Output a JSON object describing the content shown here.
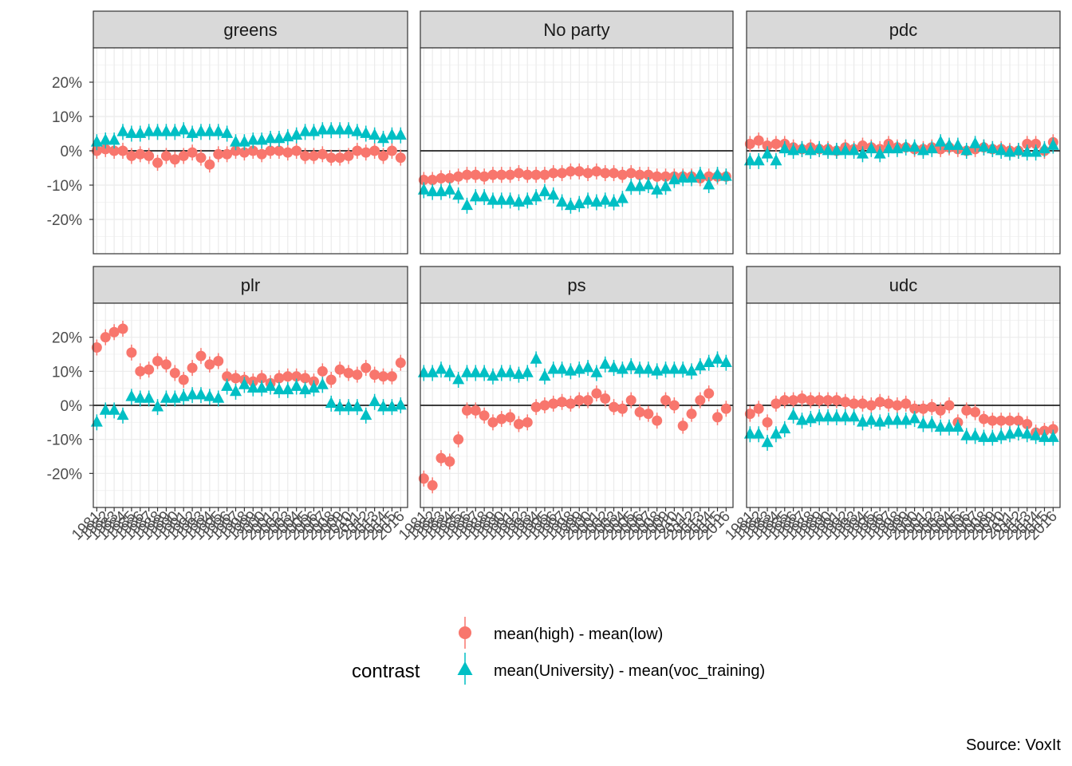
{
  "chart_data": {
    "type": "scatter",
    "facets": [
      "greens",
      "No party",
      "pdc",
      "plr",
      "ps",
      "udc"
    ],
    "x_categories": [
      "1981",
      "1982",
      "1983",
      "1984",
      "1985",
      "1986",
      "1987",
      "1988",
      "1989",
      "1990",
      "1991",
      "1992",
      "1993",
      "1994",
      "1995",
      "1996",
      "1997",
      "1998",
      "1999",
      "2000",
      "2001",
      "2002",
      "2003",
      "2004",
      "2005",
      "2006",
      "2007",
      "2008",
      "2009",
      "2010",
      "2011",
      "2012",
      "2013",
      "2014",
      "2015",
      "2016"
    ],
    "y_ticks": [
      -20,
      -10,
      0,
      10,
      20
    ],
    "y_tick_labels": [
      "-20%",
      "-10%",
      "0%",
      "10%",
      "20%"
    ],
    "ylim": [
      -30,
      30
    ],
    "ylabel": "",
    "xlabel": "",
    "legend": {
      "title": "contrast",
      "position": "bottom",
      "entries": [
        {
          "label": "mean(high) - mean(low)",
          "color": "#F8766D",
          "shape": "circle"
        },
        {
          "label": "mean(University) - mean(voc_training)",
          "color": "#00BFC4",
          "shape": "triangle"
        }
      ]
    },
    "caption": "Source: VoxIt",
    "grid": true,
    "series": [
      {
        "name": "mean(high) - mean(low)",
        "color": "#F8766D",
        "shape": "circle",
        "values": {
          "greens": [
            0.0,
            0.5,
            0.0,
            0.0,
            -1.5,
            -1.0,
            -1.5,
            -3.5,
            -1.5,
            -2.5,
            -1.5,
            -0.5,
            -2.0,
            -4.0,
            -1.0,
            -1.0,
            0.0,
            -0.5,
            0.0,
            -1.0,
            0.0,
            0.0,
            -0.5,
            0.0,
            -1.5,
            -1.5,
            -1.0,
            -2.0,
            -2.0,
            -1.5,
            0.0,
            -0.5,
            0.0,
            -1.5,
            0.0,
            -2.0
          ],
          "No party": [
            -8.5,
            -8.5,
            -8.0,
            -8.0,
            -7.5,
            -7.0,
            -7.0,
            -7.5,
            -7.0,
            -7.0,
            -7.0,
            -6.5,
            -7.0,
            -7.0,
            -7.0,
            -6.5,
            -6.5,
            -6.0,
            -6.0,
            -6.5,
            -6.0,
            -6.5,
            -6.5,
            -7.0,
            -6.5,
            -7.0,
            -7.0,
            -7.5,
            -7.5,
            -7.5,
            -7.5,
            -7.5,
            -8.0,
            -7.5,
            -7.5,
            -7.5
          ],
          "pdc": [
            2.0,
            3.0,
            1.5,
            2.0,
            2.0,
            1.0,
            0.5,
            1.0,
            0.5,
            0.5,
            0.0,
            1.0,
            0.5,
            1.5,
            1.0,
            0.5,
            2.0,
            1.0,
            1.0,
            0.5,
            0.5,
            1.0,
            0.5,
            1.0,
            0.5,
            0.0,
            0.5,
            1.0,
            0.5,
            0.5,
            0.0,
            0.0,
            2.0,
            2.0,
            0.0,
            2.5
          ],
          "plr": [
            17.0,
            20.0,
            21.5,
            22.5,
            15.5,
            10.0,
            10.5,
            13.0,
            12.0,
            9.5,
            7.5,
            11.0,
            14.5,
            12.0,
            13.0,
            8.5,
            8.0,
            7.5,
            7.0,
            8.0,
            6.5,
            8.0,
            8.5,
            8.5,
            8.0,
            7.0,
            10.0,
            7.5,
            10.5,
            9.5,
            9.0,
            11.0,
            9.0,
            8.5,
            8.5,
            12.5
          ],
          "ps": [
            -21.5,
            -23.5,
            -15.5,
            -16.5,
            -10.0,
            -1.5,
            -1.5,
            -3.0,
            -5.0,
            -4.0,
            -3.5,
            -5.5,
            -5.0,
            -0.5,
            0.0,
            0.5,
            1.0,
            0.5,
            1.5,
            1.5,
            3.5,
            2.0,
            -0.5,
            -1.0,
            1.5,
            -2.0,
            -2.5,
            -4.5,
            1.5,
            0.0,
            -6.0,
            -2.5,
            1.5,
            3.5,
            -3.5,
            -1.0
          ],
          "udc": [
            -2.5,
            -1.0,
            -5.0,
            0.5,
            1.5,
            1.5,
            2.0,
            1.5,
            1.5,
            1.5,
            1.5,
            1.0,
            0.5,
            0.5,
            0.0,
            1.0,
            0.5,
            0.0,
            0.5,
            -1.0,
            -1.0,
            -0.5,
            -1.5,
            0.0,
            -5.0,
            -1.5,
            -2.0,
            -4.0,
            -4.5,
            -4.5,
            -4.5,
            -4.5,
            -5.5,
            -8.0,
            -7.5,
            -7.0
          ]
        }
      },
      {
        "name": "mean(University) - mean(voc_training)",
        "color": "#00BFC4",
        "shape": "triangle",
        "values": {
          "greens": [
            2.5,
            3.0,
            3.0,
            5.5,
            5.0,
            5.0,
            5.5,
            5.5,
            5.5,
            5.5,
            6.0,
            5.0,
            5.5,
            5.5,
            5.5,
            5.0,
            2.5,
            2.5,
            3.0,
            3.0,
            3.5,
            3.5,
            4.0,
            4.5,
            5.5,
            5.5,
            6.0,
            6.0,
            6.0,
            6.0,
            5.5,
            5.0,
            4.5,
            3.5,
            4.5,
            4.5
          ],
          "No party": [
            -11.5,
            -12.0,
            -12.0,
            -11.5,
            -13.0,
            -16.0,
            -13.5,
            -13.5,
            -14.5,
            -14.5,
            -14.5,
            -15.0,
            -14.5,
            -13.5,
            -12.0,
            -13.0,
            -15.0,
            -16.0,
            -15.5,
            -14.5,
            -15.0,
            -14.5,
            -15.0,
            -14.0,
            -10.5,
            -10.5,
            -10.0,
            -11.5,
            -10.5,
            -8.5,
            -8.0,
            -8.0,
            -7.0,
            -10.0,
            -7.0,
            -7.5
          ],
          "pdc": [
            -3.0,
            -3.0,
            -1.0,
            -3.0,
            0.5,
            0.0,
            0.5,
            0.0,
            0.5,
            0.0,
            0.0,
            0.0,
            0.0,
            -1.0,
            0.5,
            -1.0,
            0.5,
            0.5,
            1.0,
            1.0,
            0.0,
            0.5,
            2.5,
            1.5,
            1.5,
            0.0,
            2.0,
            1.0,
            0.5,
            0.0,
            -0.5,
            0.0,
            -0.5,
            -0.5,
            0.5,
            1.5
          ],
          "plr": [
            -5.0,
            -1.5,
            -1.5,
            -3.0,
            2.5,
            2.0,
            2.0,
            -0.5,
            2.0,
            2.0,
            2.5,
            3.0,
            3.0,
            2.5,
            2.0,
            5.5,
            4.0,
            6.0,
            5.0,
            5.0,
            5.5,
            4.5,
            4.5,
            5.5,
            4.5,
            5.0,
            6.0,
            0.5,
            -0.5,
            -0.5,
            -0.5,
            -3.0,
            1.0,
            -0.5,
            -0.5,
            0.0
          ],
          "ps": [
            9.5,
            9.5,
            10.5,
            9.5,
            7.5,
            9.5,
            9.5,
            9.5,
            8.5,
            9.5,
            9.5,
            9.0,
            9.5,
            13.5,
            8.5,
            10.5,
            10.5,
            10.0,
            10.5,
            11.0,
            9.5,
            12.0,
            11.0,
            10.5,
            11.5,
            10.5,
            10.5,
            10.0,
            10.5,
            10.5,
            10.5,
            10.0,
            11.5,
            12.5,
            13.5,
            12.5
          ],
          "udc": [
            -8.5,
            -8.5,
            -11.0,
            -8.5,
            -7.0,
            -3.0,
            -4.5,
            -4.0,
            -3.5,
            -3.5,
            -3.5,
            -3.5,
            -3.5,
            -5.0,
            -4.5,
            -5.0,
            -4.5,
            -4.5,
            -4.5,
            -4.0,
            -5.5,
            -5.5,
            -6.5,
            -6.5,
            -6.5,
            -9.0,
            -9.0,
            -9.5,
            -9.5,
            -9.0,
            -8.5,
            -8.0,
            -8.5,
            -9.0,
            -9.5,
            -9.5
          ]
        }
      }
    ]
  }
}
